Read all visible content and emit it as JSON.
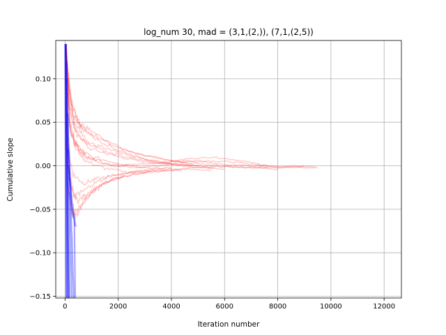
{
  "chart_data": {
    "type": "line",
    "title": "log_num 30, mad = (3,1,(2,)), (7,1,(2,5))",
    "xlabel": "Iteration number",
    "ylabel": "Cumulative slope",
    "xlim": [
      -350,
      12650
    ],
    "ylim": [
      -0.152,
      0.144
    ],
    "xticks": [
      0,
      2000,
      4000,
      6000,
      8000,
      10000,
      12000
    ],
    "xtick_labels": [
      "0",
      "2000",
      "4000",
      "6000",
      "8000",
      "10000",
      "12000"
    ],
    "yticks": [
      -0.15,
      -0.1,
      -0.05,
      0.0,
      0.05,
      0.1
    ],
    "ytick_labels": [
      "−0.15",
      "−0.10",
      "−0.05",
      "0.00",
      "0.05",
      "0.10"
    ],
    "grid": true,
    "series": [
      {
        "color": "#ff0000",
        "opacity": 0.2,
        "points": [
          [
            30,
            0.14
          ],
          [
            80,
            0.12
          ],
          [
            200,
            0.08
          ],
          [
            500,
            0.05
          ],
          [
            1000,
            0.04
          ],
          [
            2000,
            0.02
          ],
          [
            3000,
            0.012
          ],
          [
            4000,
            0.006
          ],
          [
            5000,
            0.0
          ],
          [
            5600,
            -0.003
          ]
        ]
      },
      {
        "color": "#ff0000",
        "opacity": 0.2,
        "points": [
          [
            30,
            0.14
          ],
          [
            100,
            0.1
          ],
          [
            300,
            0.06
          ],
          [
            700,
            0.04
          ],
          [
            1500,
            0.03
          ],
          [
            2500,
            0.015
          ],
          [
            3500,
            0.008
          ],
          [
            4500,
            0.004
          ],
          [
            5500,
            0.001
          ],
          [
            6500,
            -0.002
          ],
          [
            7500,
            -0.002
          ],
          [
            9500,
            -0.002
          ]
        ]
      },
      {
        "color": "#ff0000",
        "opacity": 0.2,
        "points": [
          [
            30,
            0.14
          ],
          [
            150,
            0.07
          ],
          [
            400,
            0.04
          ],
          [
            900,
            0.02
          ],
          [
            1800,
            0.012
          ],
          [
            2800,
            0.005
          ],
          [
            3800,
            0.002
          ],
          [
            5000,
            0.006
          ],
          [
            6000,
            0.005
          ],
          [
            7000,
            0.002
          ],
          [
            8000,
            -0.001
          ],
          [
            9000,
            -0.0005
          ]
        ]
      },
      {
        "color": "#ff0000",
        "opacity": 0.2,
        "points": [
          [
            30,
            0.14
          ],
          [
            120,
            0.09
          ],
          [
            350,
            0.05
          ],
          [
            800,
            0.03
          ],
          [
            1600,
            0.015
          ],
          [
            2600,
            0.008
          ],
          [
            3600,
            0.003
          ],
          [
            4600,
            0.008
          ],
          [
            5600,
            0.01
          ],
          [
            6600,
            0.006
          ],
          [
            7600,
            0.0
          ]
        ]
      },
      {
        "color": "#ff0000",
        "opacity": 0.2,
        "points": [
          [
            30,
            0.14
          ],
          [
            200,
            0.04
          ],
          [
            500,
            0.02
          ],
          [
            1000,
            0.01
          ],
          [
            2000,
            0.003
          ],
          [
            3000,
            -0.002
          ],
          [
            4000,
            -0.004
          ],
          [
            5000,
            -0.002
          ],
          [
            6000,
            -0.001
          ],
          [
            7000,
            -0.002
          ],
          [
            8000,
            -0.004
          ]
        ]
      },
      {
        "color": "#ff0000",
        "opacity": 0.2,
        "points": [
          [
            30,
            0.13
          ],
          [
            150,
            0.05
          ],
          [
            400,
            0.02
          ],
          [
            800,
            0.005
          ],
          [
            1500,
            -0.003
          ],
          [
            2500,
            -0.008
          ],
          [
            3500,
            -0.006
          ],
          [
            4500,
            -0.004
          ],
          [
            5500,
            -0.005
          ]
        ]
      },
      {
        "color": "#ff0000",
        "opacity": 0.2,
        "points": [
          [
            30,
            0.1
          ],
          [
            120,
            0.02
          ],
          [
            300,
            -0.01
          ],
          [
            700,
            -0.02
          ],
          [
            1200,
            -0.015
          ],
          [
            2000,
            -0.01
          ],
          [
            2800,
            -0.006
          ],
          [
            3600,
            -0.005
          ],
          [
            4400,
            -0.006
          ]
        ]
      },
      {
        "color": "#ff0000",
        "opacity": 0.2,
        "points": [
          [
            30,
            0.08
          ],
          [
            100,
            0.0
          ],
          [
            250,
            -0.03
          ],
          [
            500,
            -0.04
          ],
          [
            900,
            -0.03
          ],
          [
            1500,
            -0.02
          ],
          [
            2200,
            -0.012
          ],
          [
            3000,
            -0.008
          ],
          [
            3800,
            -0.006
          ]
        ]
      },
      {
        "color": "#ff0000",
        "opacity": 0.2,
        "points": [
          [
            30,
            0.05
          ],
          [
            100,
            -0.02
          ],
          [
            250,
            -0.05
          ],
          [
            400,
            -0.06
          ],
          [
            700,
            -0.04
          ],
          [
            1200,
            -0.025
          ],
          [
            1800,
            -0.015
          ],
          [
            2500,
            -0.01
          ],
          [
            3200,
            -0.007
          ]
        ]
      },
      {
        "color": "#ff0000",
        "opacity": 0.2,
        "points": [
          [
            30,
            0.03
          ],
          [
            120,
            -0.03
          ],
          [
            300,
            -0.055
          ],
          [
            500,
            -0.05
          ],
          [
            900,
            -0.035
          ],
          [
            1500,
            -0.02
          ],
          [
            2200,
            -0.012
          ]
        ]
      },
      {
        "color": "#ff0000",
        "opacity": 0.2,
        "points": [
          [
            30,
            0.14
          ],
          [
            100,
            0.11
          ],
          [
            250,
            0.07
          ],
          [
            600,
            0.045
          ],
          [
            1200,
            0.03
          ],
          [
            2000,
            0.018
          ],
          [
            2800,
            0.01
          ],
          [
            3600,
            0.004
          ],
          [
            4400,
            0.0
          ],
          [
            5200,
            -0.002
          ],
          [
            6000,
            -0.004
          ]
        ]
      },
      {
        "color": "#ff0000",
        "opacity": 0.2,
        "points": [
          [
            30,
            0.12
          ],
          [
            100,
            0.06
          ],
          [
            300,
            0.03
          ],
          [
            600,
            0.015
          ],
          [
            1100,
            0.006
          ],
          [
            1800,
            0.0
          ],
          [
            2600,
            -0.002
          ],
          [
            3400,
            0.0
          ],
          [
            4200,
            0.002
          ],
          [
            5000,
            0.0
          ]
        ]
      },
      {
        "color": "#ff0000",
        "opacity": 0.2,
        "points": [
          [
            30,
            0.14
          ],
          [
            200,
            0.06
          ],
          [
            450,
            0.035
          ],
          [
            900,
            0.025
          ],
          [
            1600,
            0.02
          ],
          [
            2400,
            0.012
          ],
          [
            3200,
            0.006
          ],
          [
            4000,
            0.002
          ],
          [
            4800,
            0.001
          ]
        ]
      },
      {
        "color": "#ff0000",
        "opacity": 0.2,
        "points": [
          [
            30,
            0.06
          ],
          [
            150,
            -0.01
          ],
          [
            350,
            -0.035
          ],
          [
            650,
            -0.03
          ],
          [
            1100,
            -0.02
          ],
          [
            1700,
            -0.012
          ],
          [
            2400,
            -0.008
          ],
          [
            3200,
            -0.004
          ],
          [
            4000,
            -0.002
          ]
        ]
      },
      {
        "color": "#ff0000",
        "opacity": 0.2,
        "points": [
          [
            30,
            0.14
          ],
          [
            80,
            0.1
          ],
          [
            180,
            0.05
          ],
          [
            400,
            0.025
          ],
          [
            800,
            0.01
          ],
          [
            1400,
            0.004
          ],
          [
            2100,
            0.0
          ],
          [
            2900,
            0.002
          ],
          [
            3700,
            0.004
          ],
          [
            4500,
            0.006
          ],
          [
            5300,
            0.004
          ],
          [
            6100,
            0.001
          ],
          [
            6900,
            0.0
          ],
          [
            7700,
            -0.001
          ],
          [
            8500,
            -0.001
          ],
          [
            9400,
            -0.001
          ]
        ]
      },
      {
        "color": "#0000ff",
        "opacity": 0.35,
        "points": [
          [
            0,
            0.14
          ],
          [
            20,
            0.0
          ],
          [
            40,
            -0.152
          ]
        ]
      },
      {
        "color": "#0000ff",
        "opacity": 0.35,
        "points": [
          [
            20,
            0.14
          ],
          [
            60,
            0.0
          ],
          [
            100,
            -0.152
          ]
        ]
      },
      {
        "color": "#0000ff",
        "opacity": 0.35,
        "points": [
          [
            40,
            0.14
          ],
          [
            80,
            0.0
          ],
          [
            140,
            -0.152
          ]
        ]
      },
      {
        "color": "#0000ff",
        "opacity": 0.35,
        "points": [
          [
            60,
            0.12
          ],
          [
            100,
            0.0
          ],
          [
            180,
            -0.152
          ]
        ]
      },
      {
        "color": "#0000ff",
        "opacity": 0.35,
        "points": [
          [
            80,
            0.1
          ],
          [
            150,
            -0.02
          ],
          [
            260,
            -0.152
          ]
        ]
      },
      {
        "color": "#0000ff",
        "opacity": 0.35,
        "points": [
          [
            100,
            0.06
          ],
          [
            200,
            -0.03
          ],
          [
            330,
            -0.152
          ]
        ]
      },
      {
        "color": "#0000ff",
        "opacity": 0.35,
        "points": [
          [
            120,
            0.02
          ],
          [
            250,
            -0.04
          ],
          [
            350,
            -0.06
          ],
          [
            380,
            -0.152
          ]
        ]
      },
      {
        "color": "#0000ff",
        "opacity": 0.35,
        "points": [
          [
            140,
            0.0
          ],
          [
            260,
            -0.05
          ],
          [
            350,
            -0.065
          ],
          [
            400,
            -0.07
          ]
        ]
      },
      {
        "color": "#0000ff",
        "opacity": 0.35,
        "points": [
          [
            30,
            0.14
          ],
          [
            70,
            0.02
          ],
          [
            120,
            -0.152
          ]
        ]
      },
      {
        "color": "#0000ff",
        "opacity": 0.35,
        "points": [
          [
            10,
            0.14
          ],
          [
            30,
            0.03
          ],
          [
            60,
            -0.152
          ]
        ]
      }
    ]
  }
}
